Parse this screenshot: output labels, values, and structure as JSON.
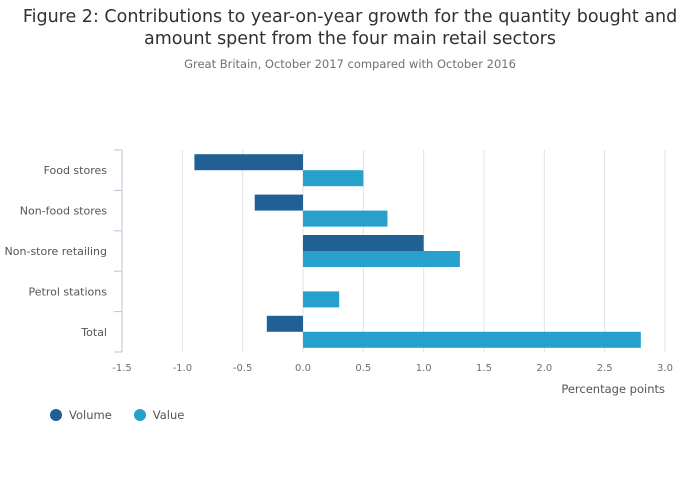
{
  "chart_data": {
    "type": "bar",
    "orientation": "horizontal",
    "title": "Figure 2: Contributions to year-on-year growth for the quantity bought and amount spent from the four main retail sectors",
    "title_lines": [
      "Figure 2: Contributions to year-on-year growth for the quantity bought and",
      "amount spent from the four main retail sectors"
    ],
    "subtitle": "Great Britain, October 2017 compared with October 2016",
    "categories": [
      "Food stores",
      "Non-food stores",
      "Non-store retailing",
      "Petrol stations",
      "Total"
    ],
    "series": [
      {
        "name": "Volume",
        "color": "#206095",
        "values": [
          -0.9,
          -0.4,
          1.0,
          0.0,
          -0.3
        ]
      },
      {
        "name": "Value",
        "color": "#27a0cc",
        "values": [
          0.5,
          0.7,
          1.3,
          0.3,
          2.8
        ]
      }
    ],
    "xlabel": "Percentage points",
    "ylabel": "",
    "xlim": [
      -1.5,
      3.0
    ],
    "xticks": [
      "-1.5",
      "-1.0",
      "-0.5",
      "0.0",
      "0.5",
      "1.0",
      "1.5",
      "2.0",
      "2.5",
      "3.0"
    ],
    "grid": true,
    "legend_position": "bottom-left"
  }
}
